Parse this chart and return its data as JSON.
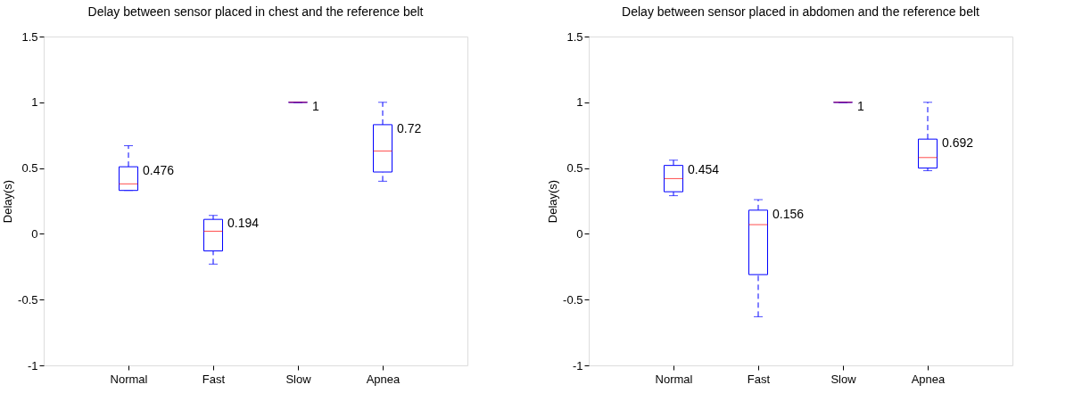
{
  "chart_data": [
    {
      "type": "box",
      "title": "Delay between sensor placed in chest and the reference belt",
      "ylabel": "Delay(s)",
      "categories": [
        "Normal",
        "Fast",
        "Slow",
        "Apnea"
      ],
      "series": [
        {
          "color": "#0000ff",
          "boxes": [
            {
              "low": 0.33,
              "q1": 0.33,
              "median": 0.38,
              "q3": 0.51,
              "high": 0.67
            },
            {
              "low": -0.23,
              "q1": -0.13,
              "median": 0.02,
              "q3": 0.11,
              "high": 0.14
            },
            {
              "low": 1,
              "q1": 1,
              "median": 1,
              "q3": 1,
              "high": 1
            },
            {
              "low": 0.4,
              "q1": 0.47,
              "median": 0.63,
              "q3": 0.83,
              "high": 1.0
            }
          ]
        }
      ],
      "annotations": [
        "0.476",
        "0.194",
        "1",
        "0.72"
      ],
      "ylim": [
        -1,
        1.5
      ],
      "yticks": [
        -1,
        -0.5,
        0,
        0.5,
        1,
        1.5
      ],
      "grid": false
    },
    {
      "type": "box",
      "title": "Delay between sensor placed in abdomen and the reference belt",
      "ylabel": "Delay(s)",
      "categories": [
        "Normal",
        "Fast",
        "Slow",
        "Apnea"
      ],
      "series": [
        {
          "color": "#0000ff",
          "boxes": [
            {
              "low": 0.29,
              "q1": 0.32,
              "median": 0.42,
              "q3": 0.52,
              "high": 0.56
            },
            {
              "low": -0.63,
              "q1": -0.31,
              "median": 0.07,
              "q3": 0.18,
              "high": 0.26
            },
            {
              "low": 1,
              "q1": 1,
              "median": 1,
              "q3": 1,
              "high": 1
            },
            {
              "low": 0.48,
              "q1": 0.5,
              "median": 0.58,
              "q3": 0.72,
              "high": 1.0
            }
          ]
        }
      ],
      "annotations": [
        "0.454",
        "0.156",
        "1",
        "0.692"
      ],
      "ylim": [
        -1,
        1.5
      ],
      "yticks": [
        -1,
        -0.5,
        0,
        0.5,
        1,
        1.5
      ],
      "grid": false
    }
  ]
}
